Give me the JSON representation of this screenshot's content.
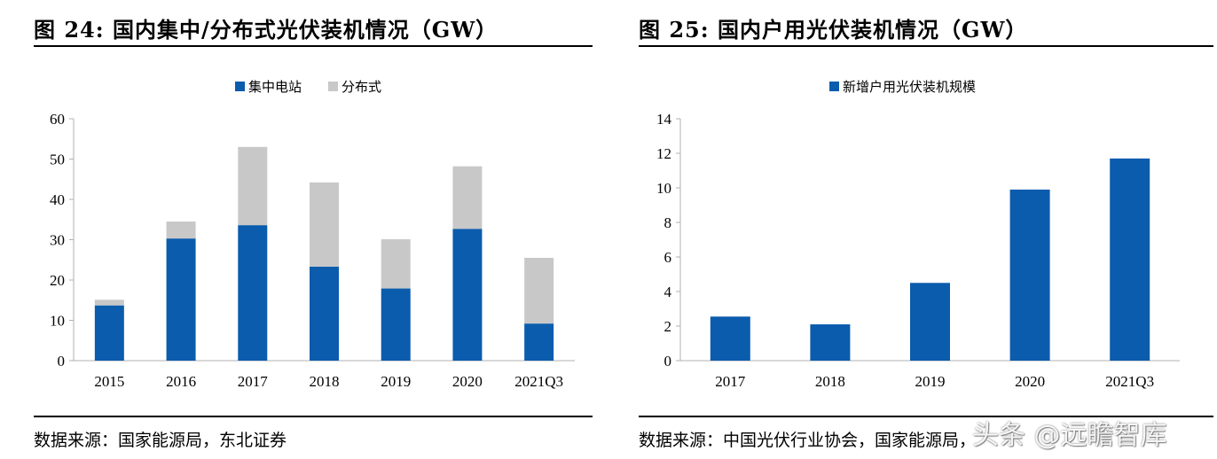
{
  "colors": {
    "primary": "#0b5cad",
    "secondary": "#c8c8c8",
    "axis": "#b0b0b0"
  },
  "left": {
    "title": "图 24: 国内集中/分布式光伏装机情况（GW）",
    "source": "数据来源：国家能源局，东北证券",
    "legend": [
      "集中电站",
      "分布式"
    ]
  },
  "right": {
    "title": "图 25: 国内户用光伏装机情况（GW）",
    "source": "数据来源：中国光伏行业协会，国家能源局，",
    "legend": [
      "新增户用光伏装机规模"
    ]
  },
  "watermark": "头条 @远瞻智库",
  "chart_data": [
    {
      "type": "bar",
      "stacked": true,
      "title": "国内集中/分布式光伏装机情况（GW）",
      "categories": [
        "2015",
        "2016",
        "2017",
        "2018",
        "2019",
        "2020",
        "2021Q3"
      ],
      "series": [
        {
          "name": "集中电站",
          "values": [
            13.7,
            30.3,
            33.6,
            23.3,
            17.9,
            32.7,
            9.2
          ]
        },
        {
          "name": "分布式",
          "values": [
            1.4,
            4.2,
            19.4,
            20.9,
            12.2,
            15.5,
            16.3
          ]
        }
      ],
      "ylim": [
        0,
        60
      ],
      "yticks": [
        0,
        10,
        20,
        30,
        40,
        50,
        60
      ],
      "xlabel": "",
      "ylabel": "",
      "legend_position": "top-center"
    },
    {
      "type": "bar",
      "title": "国内户用光伏装机情况（GW）",
      "categories": [
        "2017",
        "2018",
        "2019",
        "2020",
        "2021Q3"
      ],
      "series": [
        {
          "name": "新增户用光伏装机规模",
          "values": [
            2.55,
            2.1,
            4.5,
            9.9,
            11.7
          ]
        }
      ],
      "ylim": [
        0,
        14
      ],
      "yticks": [
        0,
        2,
        4,
        6,
        8,
        10,
        12,
        14
      ],
      "xlabel": "",
      "ylabel": "",
      "legend_position": "top-center"
    }
  ]
}
